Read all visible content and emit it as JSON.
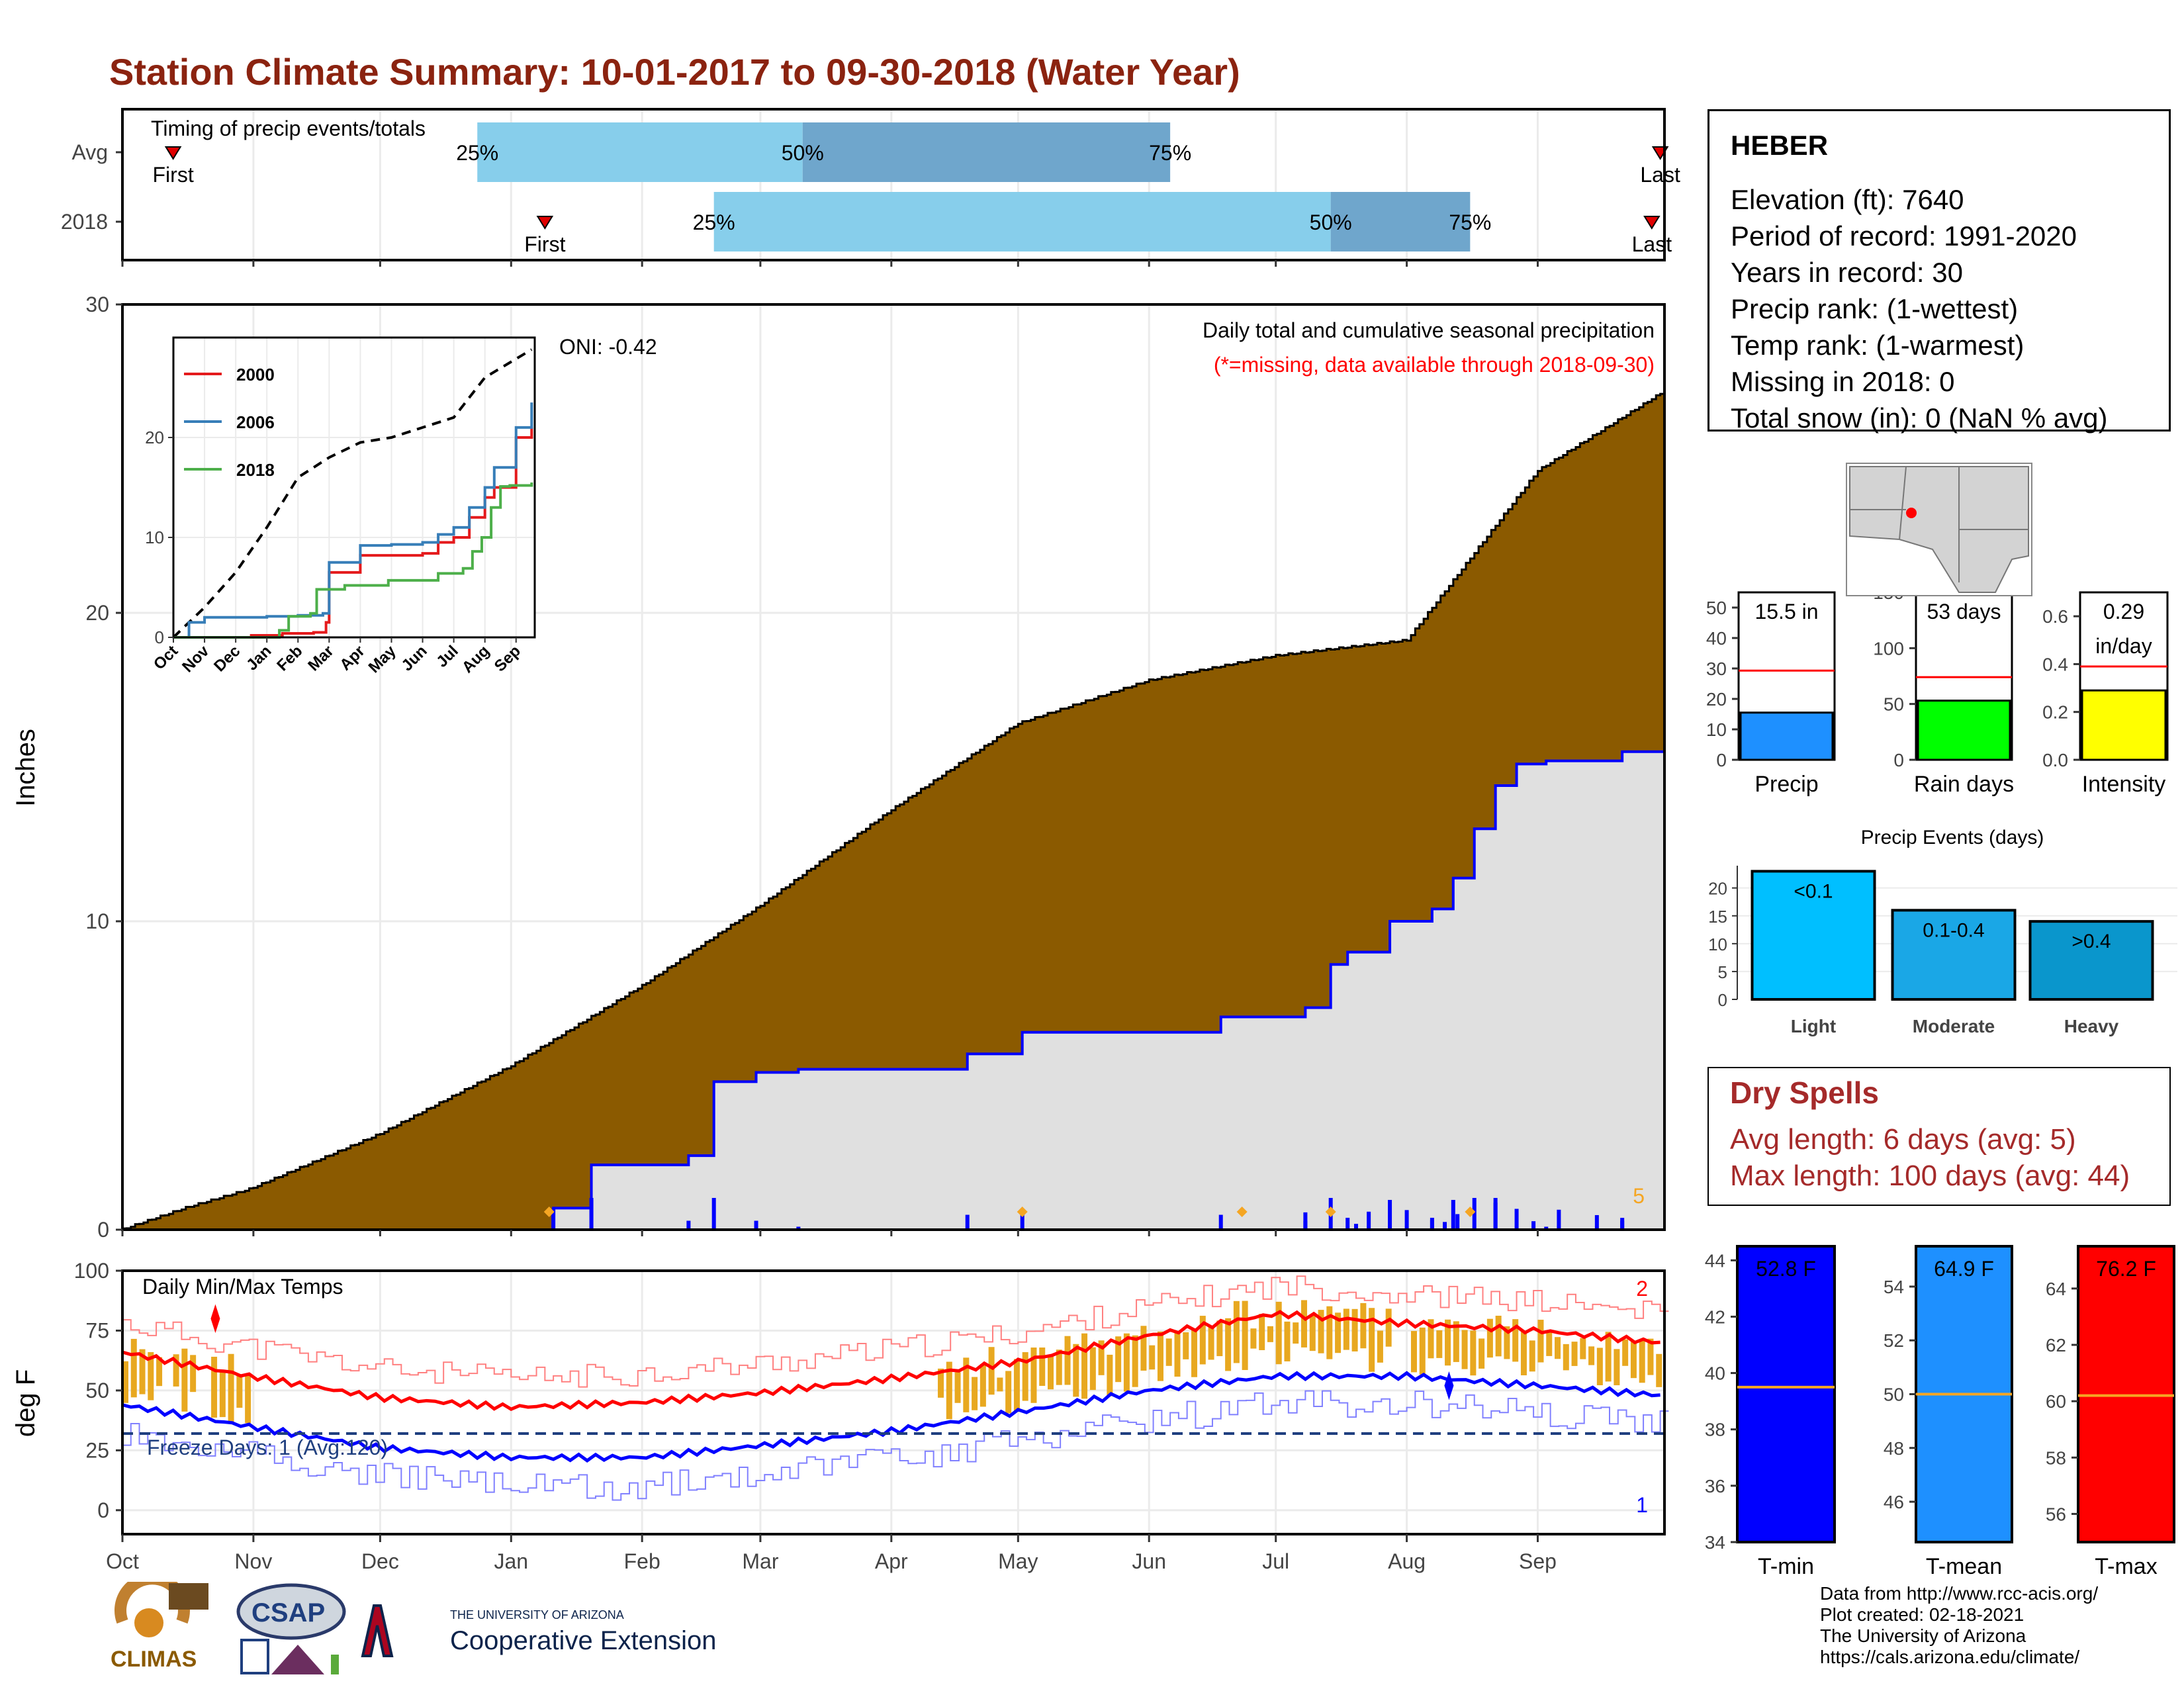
{
  "title": "Station Climate Summary: 10-01-2017 to 09-30-2018 (Water Year)",
  "colors": {
    "title": "#8b2310",
    "cumulative_fill": "#8b5a00",
    "current_fill": "#e0e0e0",
    "current_line": "#0000ff",
    "timing_light": "#87ceeb",
    "timing_dark": "#6fa6cc",
    "tmax_avg": "#ff0000",
    "tmin_avg": "#0000ff",
    "temp_range": "#e8a820",
    "dry_spells": "#a52a2a"
  },
  "timing": {
    "title": "Timing of precip events/totals",
    "rows": [
      {
        "label": "Avg",
        "first_day": 12,
        "p25": 84,
        "p50": 161,
        "p75": 248,
        "last_day": 364,
        "first_label": "First",
        "last_label": "Last",
        "p25_label": "25%",
        "p50_label": "50%",
        "p75_label": "75%"
      },
      {
        "label": "2018",
        "first_day": 100,
        "p25": 140,
        "p50": 286,
        "p75": 319,
        "last_day": 362,
        "first_label": "First",
        "last_label": "Last",
        "p25_label": "25%",
        "p50_label": "50%",
        "p75_label": "75%"
      }
    ]
  },
  "precip_panel": {
    "ylabel": "Inches",
    "yticks": [
      "0",
      "10",
      "20",
      "30"
    ],
    "oni": "ONI: -0.42",
    "header1": "Daily total and cumulative seasonal precipitation",
    "header2": "(*=missing, data available through 2018-09-30)",
    "corner_label": "5"
  },
  "inset": {
    "yticks": [
      "0",
      "10",
      "20"
    ],
    "months": [
      "Oct",
      "Nov",
      "Dec",
      "Jan",
      "Feb",
      "Mar",
      "Apr",
      "May",
      "Jun",
      "Jul",
      "Aug",
      "Sep"
    ],
    "legend": [
      {
        "name": "2000",
        "color": "#e41a1c"
      },
      {
        "name": "2006",
        "color": "#377eb8"
      },
      {
        "name": "2018",
        "color": "#4daf4a"
      }
    ]
  },
  "temp_panel": {
    "ylabel": "deg F",
    "title": "Daily Min/Max Temps",
    "yticks": [
      "0",
      "25",
      "50",
      "75",
      "100"
    ],
    "freeze": "Freeze Days: 1 (Avg:120)",
    "max_count": "2",
    "min_count": "1"
  },
  "months": [
    "Oct",
    "Nov",
    "Dec",
    "Jan",
    "Feb",
    "Mar",
    "Apr",
    "May",
    "Jun",
    "Jul",
    "Aug",
    "Sep"
  ],
  "station": {
    "name": "HEBER",
    "lines": [
      "Elevation (ft): 7640",
      "Period of record: 1991-2020",
      "Years in record: 30",
      "Precip rank:  (1-wettest)",
      "Temp rank:  (1-warmest)",
      "Missing in 2018: 0",
      "Total snow (in): 0 (NaN % avg)"
    ]
  },
  "summary_bars": [
    {
      "name": "Precip",
      "value": 15.5,
      "avg": 29.3,
      "label": "15.5 in",
      "color": "#1e90ff",
      "ymax": 55,
      "yticks": [
        "0",
        "10",
        "20",
        "30",
        "40",
        "50"
      ]
    },
    {
      "name": "Rain days",
      "value": 53,
      "avg": 74,
      "label": "53 days",
      "color": "#00ff00",
      "ymax": 150,
      "yticks": [
        "0",
        "50",
        "100",
        "150"
      ]
    },
    {
      "name": "Intensity",
      "value": 0.29,
      "avg": 0.39,
      "label": "0.29",
      "label2": "in/day",
      "color": "#ffff00",
      "ymax": 0.7,
      "yticks": [
        "0.0",
        "0.2",
        "0.4",
        "0.6"
      ]
    }
  ],
  "precip_events": {
    "title": "Precip Events (days)",
    "categories": [
      "Light",
      "Moderate",
      "Heavy"
    ],
    "labels": [
      "<0.1",
      "0.1-0.4",
      ">0.4"
    ],
    "values": [
      23,
      16,
      14
    ],
    "colors": [
      "#00bfff",
      "#1aa7e6",
      "#0a96cc"
    ],
    "yticks": [
      "0",
      "5",
      "10",
      "15",
      "20"
    ]
  },
  "dry_spells": {
    "title": "Dry Spells",
    "avg_line": "Avg length: 6 days (avg: 5)",
    "max_line": "Max length: 100 days (avg: 44)"
  },
  "temp_bars": [
    {
      "name": "T-min",
      "label": "52.8 F",
      "color": "#0000ff",
      "ymin": 34,
      "ymax": 44.5,
      "avg": 39.5,
      "yticks": [
        "34",
        "36",
        "38",
        "40",
        "42",
        "44"
      ]
    },
    {
      "name": "T-mean",
      "label": "64.9 F",
      "color": "#1e90ff",
      "ymin": 44.5,
      "ymax": 55.5,
      "avg": 50,
      "yticks": [
        "46",
        "48",
        "50",
        "52",
        "54"
      ]
    },
    {
      "name": "T-max",
      "label": "76.2 F",
      "color": "#ff0000",
      "ymin": 55,
      "ymax": 65.5,
      "avg": 60.2,
      "yticks": [
        "56",
        "58",
        "60",
        "62",
        "64"
      ]
    }
  ],
  "footer": [
    "Data from http://www.rcc-acis.org/",
    "Plot created: 02-18-2021",
    "The University of Arizona",
    "https://cals.arizona.edu/climate/"
  ],
  "logos": {
    "climas": "CLIMAS",
    "csap": "CSAP",
    "ua_top": "THE UNIVERSITY OF ARIZONA",
    "ua_bottom": "Cooperative Extension"
  },
  "chart_data": [
    {
      "type": "area",
      "title": "Daily total and cumulative seasonal precipitation",
      "ylabel": "Inches",
      "ylim": [
        0,
        30
      ],
      "x_type": "day of water year",
      "xlim": [
        0,
        365
      ],
      "series": [
        {
          "name": "cumulative average",
          "x": [
            0,
            15,
            30,
            61,
            92,
            123,
            151,
            182,
            212,
            243,
            273,
            304,
            335,
            364
          ],
          "y": [
            0,
            0.7,
            1.3,
            3.1,
            5.3,
            7.9,
            10.5,
            13.6,
            16.4,
            17.8,
            18.6,
            19.1,
            24.6,
            27.1
          ]
        },
        {
          "name": "2018 cumulative",
          "x": [
            0,
            100,
            102,
            110,
            111,
            134,
            140,
            150,
            160,
            200,
            213,
            260,
            280,
            286,
            290,
            300,
            310,
            315,
            320,
            325,
            330,
            337,
            355,
            364
          ],
          "y": [
            0,
            0,
            0.7,
            0.7,
            2.1,
            2.4,
            4.8,
            5.1,
            5.2,
            5.7,
            6.4,
            6.9,
            7.2,
            8.6,
            9.0,
            10.0,
            10.4,
            11.4,
            13.0,
            14.4,
            15.1,
            15.2,
            15.5,
            15.5
          ]
        }
      ]
    },
    {
      "type": "line",
      "title": "",
      "ylim": [
        0,
        30
      ],
      "months": [
        "Oct",
        "Nov",
        "Dec",
        "Jan",
        "Feb",
        "Mar",
        "Apr",
        "May",
        "Jun",
        "Jul",
        "Aug",
        "Sep"
      ],
      "series": [
        {
          "name": "",
          "x": [
            0,
            1,
            2,
            3,
            4,
            5,
            6,
            7,
            8,
            9,
            10,
            11.5
          ],
          "y": [
            0,
            3,
            6.5,
            11,
            16,
            18,
            19.5,
            20,
            21,
            22,
            26,
            28.8
          ]
        },
        {
          "name": "2000",
          "x": [
            0,
            1.5,
            2.5,
            3.5,
            4.5,
            4.9,
            5.0,
            6.0,
            7.0,
            8.0,
            8.5,
            9.0,
            9.5,
            10.0,
            10.3,
            11.0,
            11.5
          ],
          "y": [
            0,
            0,
            0.2,
            0.4,
            0.5,
            1.5,
            6.5,
            8.2,
            8.2,
            8.4,
            9.5,
            10,
            12,
            14,
            15,
            20,
            21
          ]
        },
        {
          "name": "2006",
          "x": [
            0,
            0.5,
            1.0,
            3.0,
            4.0,
            4.8,
            5.0,
            6.0,
            7.0,
            8.0,
            8.5,
            9.0,
            9.5,
            10.0,
            10.3,
            11.0,
            11.5
          ],
          "y": [
            0,
            1.5,
            2.0,
            2.1,
            2.2,
            2.4,
            7.5,
            9.2,
            9.3,
            9.5,
            10.3,
            11,
            13,
            15,
            17,
            21,
            23.5
          ]
        },
        {
          "name": "2018",
          "x": [
            0,
            3.3,
            3.4,
            3.6,
            3.7,
            4.4,
            4.6,
            5.5,
            6.9,
            8.5,
            9.3,
            9.6,
            9.9,
            10.2,
            10.5,
            10.8,
            11.5
          ],
          "y": [
            0,
            0,
            0.7,
            0.7,
            2.1,
            2.4,
            4.8,
            5.2,
            5.7,
            6.4,
            6.9,
            8.6,
            10.0,
            13.0,
            15.1,
            15.2,
            15.5
          ]
        }
      ]
    },
    {
      "type": "line",
      "title": "Daily Min/Max Temps",
      "ylabel": "deg F",
      "ylim": [
        -10,
        100
      ],
      "x_type": "day of water year",
      "xlim": [
        0,
        365
      ],
      "series": [
        {
          "name": "avg max",
          "x": [
            0,
            30,
            61,
            92,
            123,
            151,
            182,
            212,
            243,
            273,
            304,
            335,
            364
          ],
          "y": [
            66,
            56,
            47,
            43,
            45,
            49,
            55,
            62,
            73,
            82,
            78,
            75,
            70
          ]
        },
        {
          "name": "avg min",
          "x": [
            0,
            30,
            61,
            92,
            123,
            151,
            182,
            212,
            243,
            273,
            304,
            335,
            364
          ],
          "y": [
            44,
            35,
            26,
            22,
            22,
            27,
            33,
            41,
            50,
            56,
            56,
            52,
            48
          ]
        }
      ],
      "freeze_line": 32
    },
    {
      "type": "bar",
      "title": "Precip Events (days)",
      "categories": [
        "Light",
        "Moderate",
        "Heavy"
      ],
      "values": [
        23,
        16,
        14
      ]
    },
    {
      "type": "bar",
      "categories": [
        "Precip",
        "Rain days",
        "Intensity"
      ],
      "values": [
        15.5,
        53,
        0.29
      ]
    },
    {
      "type": "bar",
      "categories": [
        "T-min",
        "T-mean",
        "T-max"
      ],
      "values": [
        52.8,
        64.9,
        76.2
      ]
    }
  ]
}
